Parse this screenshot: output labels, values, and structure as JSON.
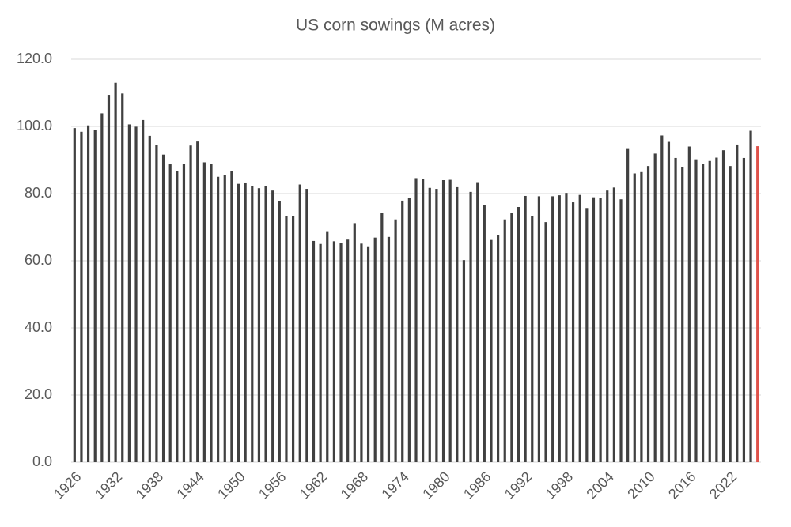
{
  "chart_data": {
    "type": "bar",
    "title": "US corn sowings (M acres)",
    "categories": [
      "1926",
      null,
      null,
      null,
      null,
      null,
      "1932",
      null,
      null,
      null,
      null,
      null,
      "1938",
      null,
      null,
      null,
      null,
      null,
      "1944",
      null,
      null,
      null,
      null,
      null,
      "1950",
      null,
      null,
      null,
      null,
      null,
      "1956",
      null,
      null,
      null,
      null,
      null,
      "1962",
      null,
      null,
      null,
      null,
      null,
      "1968",
      null,
      null,
      null,
      null,
      null,
      "1974",
      null,
      null,
      null,
      null,
      null,
      "1980",
      null,
      null,
      null,
      null,
      null,
      "1986",
      null,
      null,
      null,
      null,
      null,
      "1992",
      null,
      null,
      null,
      null,
      null,
      "1998",
      null,
      null,
      null,
      null,
      null,
      "2004",
      null,
      null,
      null,
      null,
      null,
      "2010",
      null,
      null,
      null,
      null,
      null,
      "2016",
      null,
      null,
      null,
      null,
      null,
      "2022",
      null,
      null,
      null,
      null
    ],
    "values": [
      99.5,
      98.4,
      100.3,
      98.9,
      103.9,
      109.4,
      113.0,
      109.8,
      100.6,
      99.9,
      101.9,
      97.2,
      94.5,
      91.6,
      88.7,
      86.8,
      88.8,
      94.3,
      95.5,
      89.3,
      88.9,
      85.0,
      85.5,
      86.7,
      82.9,
      83.3,
      82.2,
      81.6,
      82.2,
      80.9,
      77.8,
      73.2,
      73.4,
      82.7,
      81.4,
      65.9,
      65.0,
      68.8,
      65.8,
      65.2,
      66.3,
      71.2,
      65.1,
      64.3,
      66.9,
      74.2,
      67.1,
      72.3,
      77.9,
      78.7,
      84.6,
      84.3,
      81.7,
      81.4,
      84.0,
      84.1,
      81.9,
      60.2,
      80.5,
      83.4,
      76.6,
      66.2,
      67.7,
      72.3,
      74.2,
      76.0,
      79.3,
      73.2,
      79.2,
      71.5,
      79.2,
      79.5,
      80.2,
      77.4,
      79.6,
      75.7,
      78.9,
      78.6,
      80.9,
      81.8,
      78.3,
      93.5,
      86.0,
      86.4,
      88.2,
      91.9,
      97.3,
      95.4,
      90.6,
      88.0,
      94.0,
      90.2,
      88.9,
      89.7,
      90.7,
      92.9,
      88.2,
      94.6,
      90.6,
      98.7,
      94.1
    ],
    "colors": [
      "#404040",
      "#404040",
      "#404040",
      "#404040",
      "#404040",
      "#404040",
      "#404040",
      "#404040",
      "#404040",
      "#404040",
      "#404040",
      "#404040",
      "#404040",
      "#404040",
      "#404040",
      "#404040",
      "#404040",
      "#404040",
      "#404040",
      "#404040",
      "#404040",
      "#404040",
      "#404040",
      "#404040",
      "#404040",
      "#404040",
      "#404040",
      "#404040",
      "#404040",
      "#404040",
      "#404040",
      "#404040",
      "#404040",
      "#404040",
      "#404040",
      "#404040",
      "#404040",
      "#404040",
      "#404040",
      "#404040",
      "#404040",
      "#404040",
      "#404040",
      "#404040",
      "#404040",
      "#404040",
      "#404040",
      "#404040",
      "#404040",
      "#404040",
      "#404040",
      "#404040",
      "#404040",
      "#404040",
      "#404040",
      "#404040",
      "#404040",
      "#404040",
      "#404040",
      "#404040",
      "#404040",
      "#404040",
      "#404040",
      "#404040",
      "#404040",
      "#404040",
      "#404040",
      "#404040",
      "#404040",
      "#404040",
      "#404040",
      "#404040",
      "#404040",
      "#404040",
      "#404040",
      "#404040",
      "#404040",
      "#404040",
      "#404040",
      "#404040",
      "#404040",
      "#404040",
      "#404040",
      "#404040",
      "#404040",
      "#404040",
      "#404040",
      "#404040",
      "#404040",
      "#404040",
      "#404040",
      "#404040",
      "#404040",
      "#404040",
      "#404040",
      "#404040",
      "#404040",
      "#404040",
      "#404040",
      "#404040",
      "#e0524a"
    ],
    "ylim": [
      0,
      120
    ],
    "yticks": [
      {
        "value": 0,
        "label": "0.0"
      },
      {
        "value": 20,
        "label": "20.0"
      },
      {
        "value": 40,
        "label": "40.0"
      },
      {
        "value": 60,
        "label": "60.0"
      },
      {
        "value": 80,
        "label": "80.0"
      },
      {
        "value": 100,
        "label": "100.0"
      },
      {
        "value": 120,
        "label": "120.0"
      }
    ],
    "grid": true
  }
}
